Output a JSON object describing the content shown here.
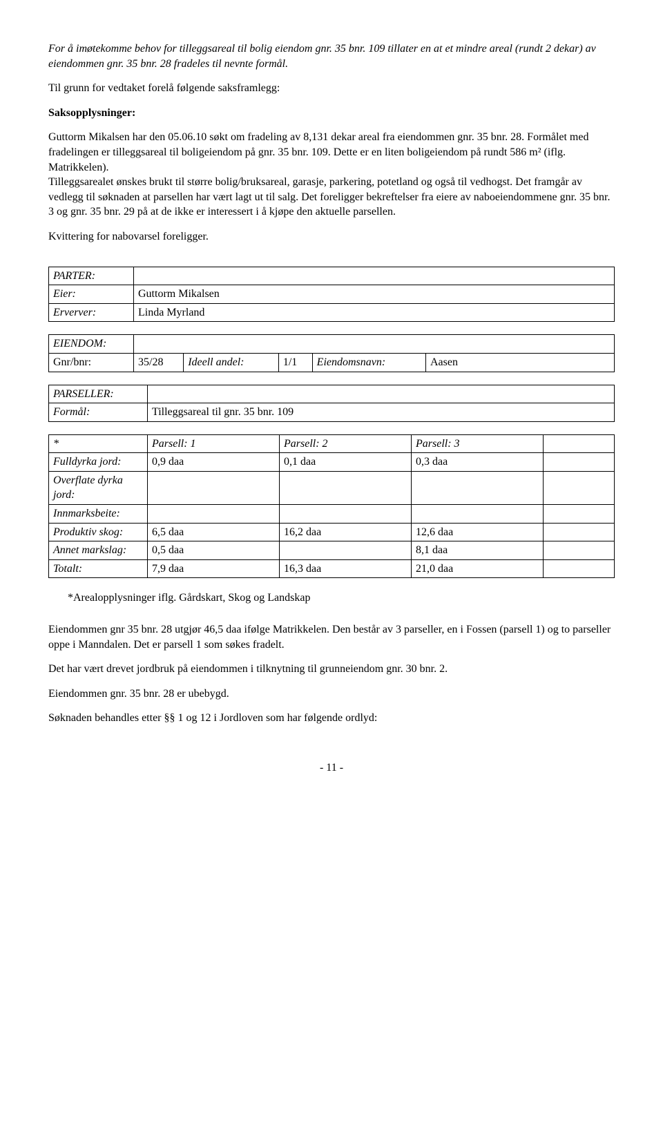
{
  "intro_italic": "For å imøtekomme behov for tilleggsareal til bolig eiendom gnr. 35 bnr. 109 tillater en at et mindre areal (rundt 2 dekar) av eiendommen gnr. 35 bnr. 28 fradeles til nevnte formål.",
  "heading1": "Til grunn for vedtaket forelå følgende saksframlegg:",
  "heading2": "Saksopplysninger:",
  "body1": "Guttorm Mikalsen har den 05.06.10 søkt om fradeling av 8,131 dekar areal fra eiendommen gnr. 35 bnr. 28. Formålet med fradelingen er tilleggsareal til boligeiendom på gnr. 35 bnr. 109. Dette er en liten boligeiendom på rundt 586 m² (iflg. Matrikkelen).",
  "body2": "Tilleggsarealet ønskes brukt til større bolig/bruksareal, garasje, parkering, potetland og også til vedhogst. Det framgår av vedlegg til søknaden at parsellen har vært lagt ut til salg. Det foreligger bekreftelser fra eiere av naboeiendommene gnr. 35 bnr. 3 og gnr. 35 bnr. 29 på at de ikke er interessert i å kjøpe den aktuelle parsellen.",
  "body3": "Kvittering for nabovarsel foreligger.",
  "parter": {
    "title": "PARTER:",
    "row1_label": "Eier:",
    "row1_value": "Guttorm Mikalsen",
    "row2_label": "Erverver:",
    "row2_value": "Linda Myrland"
  },
  "eiendom": {
    "title": "EIENDOM:",
    "gnrbnr_label": "Gnr/bnr:",
    "gnrbnr_value": "35/28",
    "ideell_label": "Ideell andel:",
    "ideell_value": "1/1",
    "navn_label": "Eiendomsnavn:",
    "navn_value": "Aasen"
  },
  "parseller": {
    "title": "PARSELLER:",
    "formal_label": "Formål:",
    "formal_value": "Tilleggsareal til gnr. 35 bnr. 109",
    "star": "*",
    "col1": "Parsell: 1",
    "col2": "Parsell: 2",
    "col3": "Parsell: 3",
    "rows": [
      {
        "label": "Fulldyrka jord:",
        "p1": "0,9 daa",
        "p2": "0,1 daa",
        "p3": "0,3 daa"
      },
      {
        "label": "Overflate dyrka jord:",
        "p1": "",
        "p2": "",
        "p3": ""
      },
      {
        "label": "Innmarksbeite:",
        "p1": "",
        "p2": "",
        "p3": ""
      },
      {
        "label": "Produktiv skog:",
        "p1": "6,5 daa",
        "p2": "16,2 daa",
        "p3": "12,6 daa"
      },
      {
        "label": "Annet markslag:",
        "p1": "0,5 daa",
        "p2": "",
        "p3": "8,1 daa"
      },
      {
        "label": "Totalt:",
        "p1": "7,9 daa",
        "p2": "16,3 daa",
        "p3": "21,0 daa"
      }
    ]
  },
  "footnote": "*Arealopplysninger iflg. Gårdskart, Skog og Landskap",
  "body4": "Eiendommen gnr 35 bnr. 28 utgjør 46,5 daa ifølge Matrikkelen. Den består av 3 parseller, en i Fossen (parsell 1) og to parseller oppe i Manndalen. Det er parsell 1 som søkes fradelt.",
  "body5": "Det har vært drevet jordbruk på eiendommen i tilknytning til grunneiendom gnr. 30 bnr. 2.",
  "body6": "Eiendommen gnr. 35 bnr. 28 er ubebygd.",
  "body7": "Søknaden behandles etter §§ 1 og 12 i Jordloven som har følgende ordlyd:",
  "page_number": "- 11 -"
}
